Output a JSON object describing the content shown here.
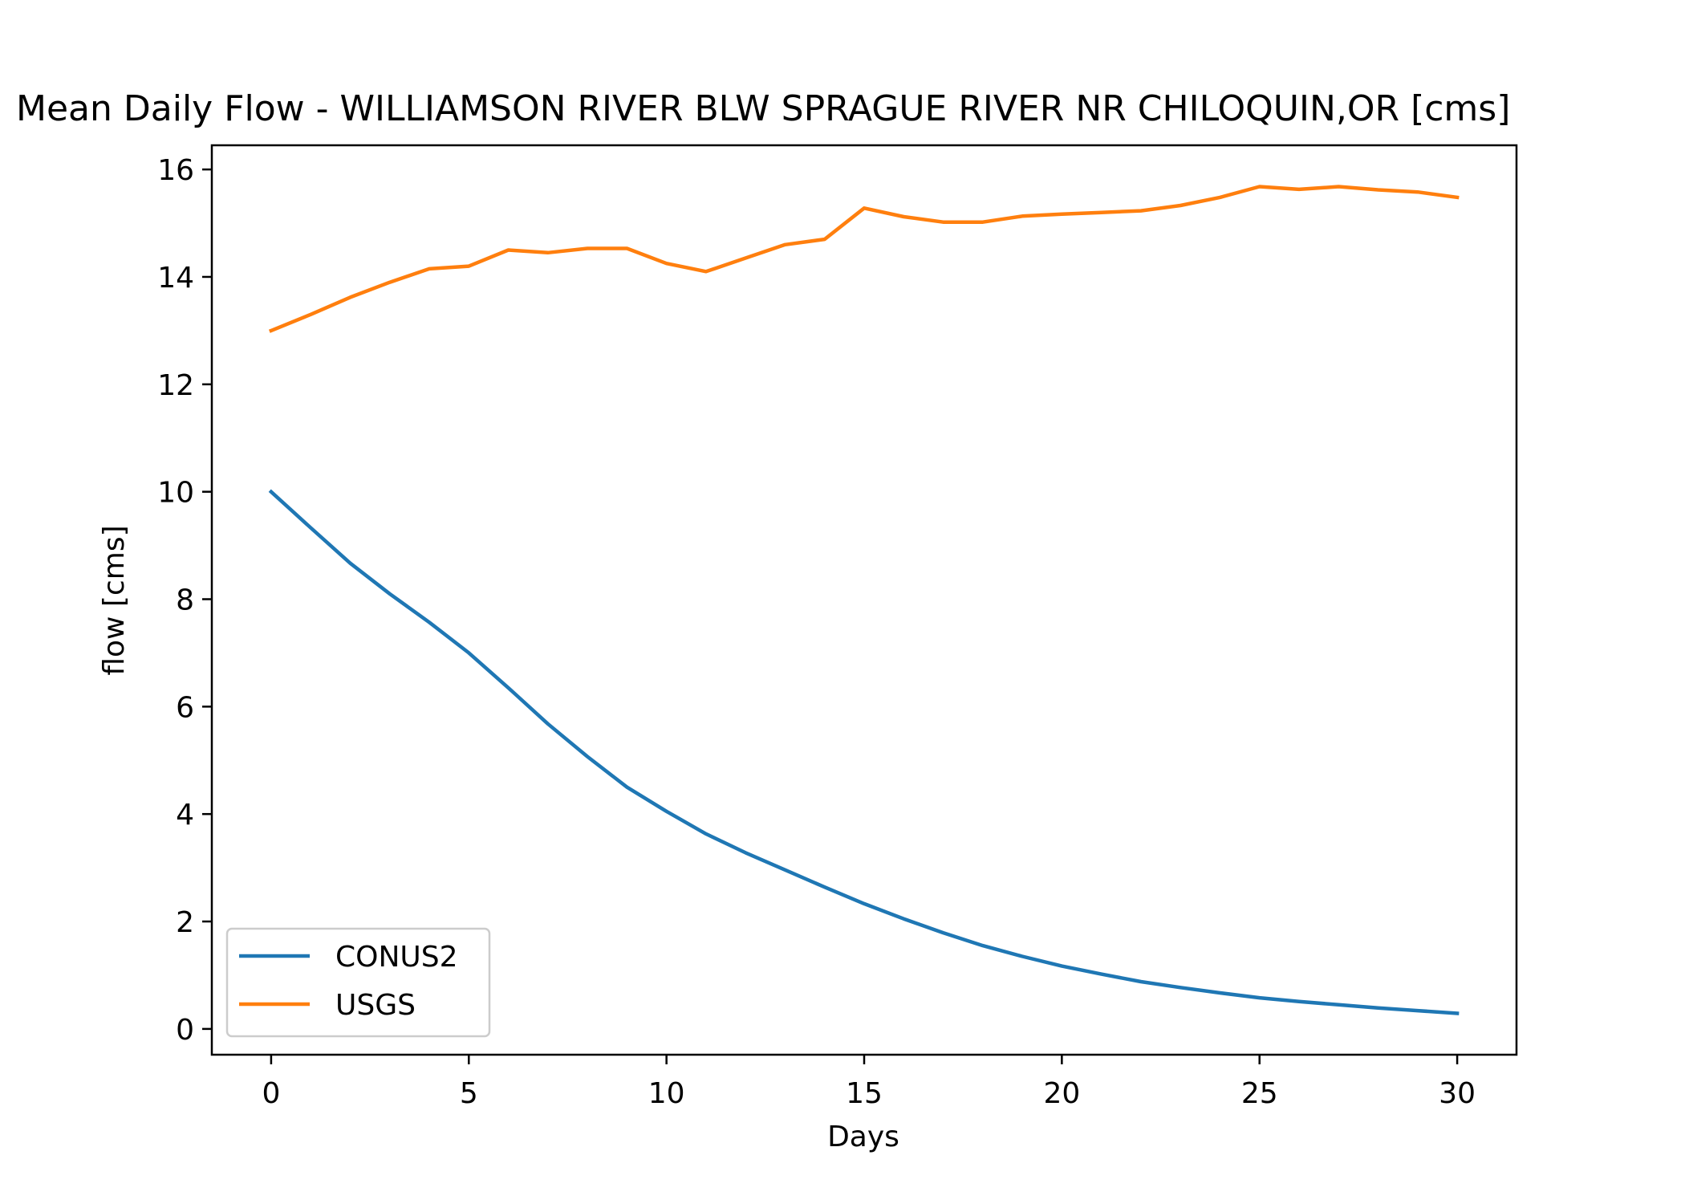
{
  "chart_data": {
    "type": "line",
    "title": "Mean Daily Flow - WILLIAMSON RIVER BLW SPRAGUE RIVER NR CHILOQUIN,OR [cms]",
    "xlabel": "Days",
    "ylabel": "flow [cms]",
    "xlim": [
      -1.5,
      31.5
    ],
    "ylim": [
      -0.48,
      16.45
    ],
    "x_ticks": [
      0,
      5,
      10,
      15,
      20,
      25,
      30
    ],
    "y_ticks": [
      0,
      2,
      4,
      6,
      8,
      10,
      12,
      14,
      16
    ],
    "grid": false,
    "legend_position": "lower left",
    "x": [
      0,
      1,
      2,
      3,
      4,
      5,
      6,
      7,
      8,
      9,
      10,
      11,
      12,
      13,
      14,
      15,
      16,
      17,
      18,
      19,
      20,
      21,
      22,
      23,
      24,
      25,
      26,
      27,
      28,
      29,
      30
    ],
    "series": [
      {
        "name": "CONUS2",
        "color": "#1f77b4",
        "values": [
          10.0,
          9.33,
          8.67,
          8.1,
          7.57,
          7.0,
          6.35,
          5.68,
          5.07,
          4.5,
          4.05,
          3.63,
          3.28,
          2.96,
          2.64,
          2.33,
          2.05,
          1.79,
          1.55,
          1.35,
          1.17,
          1.02,
          0.88,
          0.77,
          0.67,
          0.58,
          0.51,
          0.45,
          0.39,
          0.34,
          0.29
        ]
      },
      {
        "name": "USGS",
        "color": "#ff7f0e",
        "values": [
          13.0,
          13.3,
          13.62,
          13.9,
          14.15,
          14.2,
          14.5,
          14.45,
          14.53,
          14.53,
          14.25,
          14.1,
          14.35,
          14.6,
          14.7,
          15.28,
          15.12,
          15.02,
          15.02,
          15.13,
          15.17,
          15.2,
          15.23,
          15.33,
          15.48,
          15.68,
          15.63,
          15.68,
          15.62,
          15.58,
          15.48
        ]
      }
    ]
  }
}
